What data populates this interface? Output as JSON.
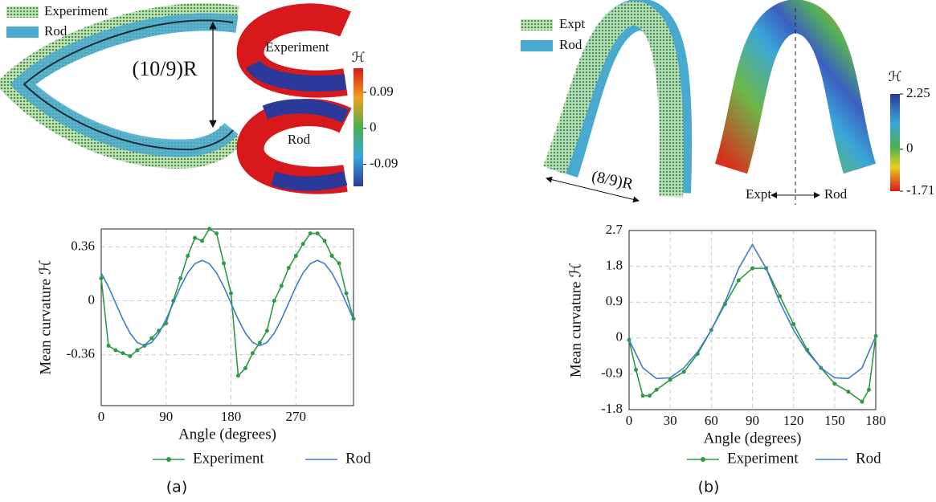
{
  "chart_data": [
    {
      "type": "line",
      "xlabel": "Angle (degrees)",
      "ylabel": "Mean curvature ℋ",
      "caption": "(a)",
      "x": [
        0,
        10,
        20,
        30,
        40,
        50,
        60,
        70,
        80,
        90,
        100,
        110,
        120,
        130,
        140,
        150,
        160,
        170,
        180,
        190,
        200,
        210,
        220,
        230,
        240,
        250,
        260,
        270,
        280,
        290,
        300,
        310,
        320,
        330,
        340,
        350
      ],
      "series": [
        {
          "name": "Experiment",
          "color": "#2e9a46",
          "marker": true,
          "values": [
            0.15,
            -0.3,
            -0.33,
            -0.35,
            -0.37,
            -0.33,
            -0.3,
            -0.25,
            -0.2,
            -0.15,
            0.0,
            0.15,
            0.3,
            0.42,
            0.4,
            0.48,
            0.45,
            0.25,
            0.05,
            -0.5,
            -0.45,
            -0.35,
            -0.28,
            -0.2,
            0.0,
            0.1,
            0.22,
            0.3,
            0.38,
            0.45,
            0.45,
            0.4,
            0.3,
            0.25,
            0.05,
            -0.12
          ]
        },
        {
          "name": "Rod",
          "color": "#3a7ec8",
          "marker": false,
          "values": [
            0.186,
            0.094,
            -0.015,
            -0.124,
            -0.216,
            -0.278,
            -0.3,
            -0.278,
            -0.216,
            -0.124,
            -0.015,
            0.094,
            0.186,
            0.248,
            0.27,
            0.248,
            0.186,
            0.094,
            -0.015,
            -0.124,
            -0.216,
            -0.278,
            -0.3,
            -0.278,
            -0.216,
            -0.124,
            -0.015,
            0.094,
            0.186,
            0.248,
            0.27,
            0.248,
            0.186,
            0.094,
            -0.015,
            -0.124
          ]
        }
      ],
      "xlim": [
        0,
        350
      ],
      "xticks": [
        0,
        90,
        180,
        270
      ],
      "ylim": [
        -0.7,
        0.48
      ],
      "yticks": [
        -0.36,
        0,
        0.36
      ],
      "grid": true,
      "legend": "bottom"
    },
    {
      "type": "line",
      "xlabel": "Angle (degrees)",
      "ylabel": "Mean curvature ℋ",
      "caption": "(b)",
      "series": [
        {
          "name": "Experiment",
          "color": "#2e9a46",
          "marker": true,
          "x": [
            0,
            5,
            10,
            15,
            20,
            30,
            40,
            50,
            60,
            70,
            80,
            90,
            100,
            110,
            120,
            130,
            140,
            150,
            160,
            170,
            175,
            180
          ],
          "values": [
            -0.05,
            -0.8,
            -1.45,
            -1.45,
            -1.3,
            -1.05,
            -0.85,
            -0.4,
            0.2,
            0.85,
            1.45,
            1.75,
            1.75,
            1.05,
            0.35,
            -0.3,
            -0.75,
            -1.15,
            -1.35,
            -1.6,
            -1.3,
            0.05
          ]
        },
        {
          "name": "Rod",
          "color": "#3a7ec8",
          "marker": false,
          "x": [
            0,
            10,
            20,
            30,
            40,
            50,
            60,
            70,
            80,
            90,
            100,
            110,
            120,
            130,
            140,
            150,
            160,
            170,
            180
          ],
          "values": [
            -0.05,
            -0.75,
            -1.02,
            -1.0,
            -0.75,
            -0.35,
            0.2,
            0.9,
            1.75,
            2.35,
            1.75,
            0.9,
            0.2,
            -0.35,
            -0.75,
            -1.0,
            -1.02,
            -0.75,
            0.05
          ]
        }
      ],
      "xlim": [
        0,
        180
      ],
      "xticks": [
        0,
        30,
        60,
        90,
        120,
        150,
        180
      ],
      "ylim": [
        -1.8,
        2.7
      ],
      "yticks": [
        -1.8,
        -0.9,
        0,
        0.9,
        1.8,
        2.7
      ],
      "grid": true,
      "legend": "bottom"
    }
  ],
  "illustrations": {
    "a": {
      "legend": [
        "Experiment",
        "Rod"
      ],
      "dimension": "(10/9)R",
      "maps": [
        "Experiment",
        "Rod"
      ],
      "colorbar": {
        "label": "ℋ",
        "lim": [
          -0.145,
          0.15
        ],
        "ticks": [
          0.09,
          0,
          -0.09
        ]
      }
    },
    "b": {
      "legend": [
        "Expt",
        "Rod"
      ],
      "dimension": "(8/9)R",
      "sides": [
        "Expt",
        "Rod"
      ],
      "colorbar": {
        "label": "ℋ",
        "lim": [
          -1.71,
          2.25
        ],
        "ticks": [
          2.25,
          0,
          -1.71
        ]
      }
    }
  }
}
